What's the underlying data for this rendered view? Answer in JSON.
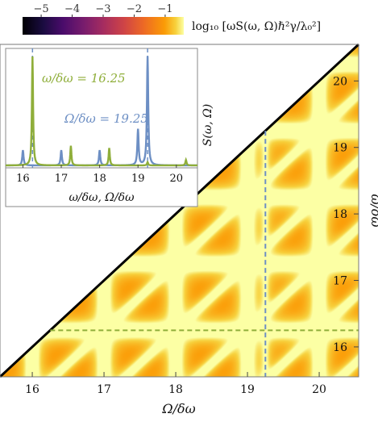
{
  "chart_data": [
    {
      "type": "heatmap",
      "title": "",
      "colorbar": {
        "label": "log₁₀ [ωS(ω, Ω)ℏ²γ/λ₀²]",
        "ticks": [
          "−5",
          "−4",
          "−3",
          "−2",
          "−1"
        ],
        "tick_values": [
          -5,
          -4,
          -3,
          -2,
          -1
        ],
        "range": [
          -5.6,
          -0.4
        ],
        "colormap": "inferno"
      },
      "xlabel": "Ω/δω",
      "ylabel": "ω/δω",
      "xlim": [
        15.55,
        20.55
      ],
      "ylim": [
        15.55,
        20.55
      ],
      "xticks": [
        "16",
        "17",
        "18",
        "19",
        "20"
      ],
      "xtick_values": [
        16,
        17,
        18,
        19,
        20
      ],
      "yticks": [
        "16",
        "17",
        "18",
        "19",
        "20"
      ],
      "ytick_values": [
        16,
        17,
        18,
        19,
        20
      ],
      "diagonal": "black line ω = Ω, upper-left half blank",
      "horizontal_cut": {
        "y": 16.25,
        "color": "#8fae3a"
      },
      "vertical_cut": {
        "x": 19.25,
        "color": "#6d8fc4"
      },
      "resonances_omega": [
        16.25,
        17.25,
        18.25,
        19.25,
        20.25
      ],
      "resonances_Omega": [
        16,
        17,
        18,
        19,
        20,
        19.25
      ]
    },
    {
      "type": "line",
      "title": "",
      "ylabel": "S(ω, Ω)",
      "xlabel": "ω/δω, Ω/δω",
      "xlim": [
        15.55,
        20.55
      ],
      "xticks": [
        "16",
        "17",
        "18",
        "19",
        "20"
      ],
      "xtick_values": [
        16,
        17,
        18,
        19,
        20
      ],
      "series": [
        {
          "name": "ω/δω = 16.25",
          "color": "#8fae3a",
          "peaks": [
            [
              16.25,
              1.0
            ],
            [
              17.25,
              0.18
            ],
            [
              18.25,
              0.16
            ],
            [
              19.25,
              0.03
            ],
            [
              20.25,
              0.05
            ]
          ]
        },
        {
          "name": "Ω/δω = 19.25",
          "color": "#6d8fc4",
          "peaks": [
            [
              16.0,
              0.14
            ],
            [
              17.0,
              0.14
            ],
            [
              18.0,
              0.14
            ],
            [
              19.0,
              0.33
            ],
            [
              19.25,
              1.0
            ]
          ]
        }
      ],
      "markers": [
        16.25,
        19.25
      ]
    }
  ]
}
